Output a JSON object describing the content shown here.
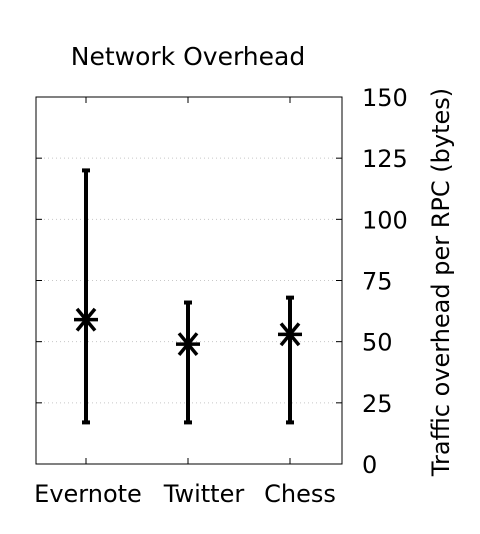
{
  "chart_data": {
    "type": "errorbar",
    "title": "Network Overhead",
    "xlabel": "",
    "ylabel": "Traffic overhead per RPC (bytes)",
    "ylim": [
      0,
      150
    ],
    "yticks": [
      0,
      25,
      50,
      75,
      100,
      125,
      150
    ],
    "y_axis_side": "right",
    "grid": "horizontal dotted",
    "legend": "none",
    "marker": "asterisk",
    "color": "#000000",
    "categories": [
      "Evernote",
      "Twitter",
      "Chess"
    ],
    "series": [
      {
        "points": [
          {
            "category": "Evernote",
            "value": 59,
            "min": 17,
            "max": 120
          },
          {
            "category": "Twitter",
            "value": 49,
            "min": 17,
            "max": 66
          },
          {
            "category": "Chess",
            "value": 53,
            "min": 17,
            "max": 68
          }
        ]
      }
    ]
  }
}
